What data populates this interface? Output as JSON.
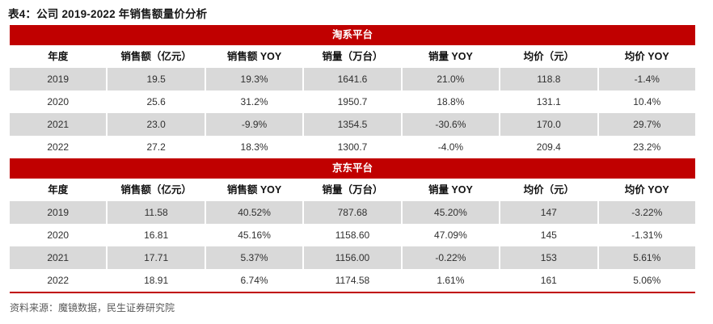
{
  "page": {
    "title": "表4：公司 2019-2022 年销售额量价分析",
    "source": "资料来源：魔镜数据，民生证券研究院"
  },
  "colors": {
    "banner_red": "#c00000",
    "row_stripe": "#d9d9d9"
  },
  "table": {
    "columns": [
      "年度",
      "销售额（亿元）",
      "销售额 YOY",
      "销量（万台）",
      "销量 YOY",
      "均价（元）",
      "均价 YOY"
    ],
    "sections": [
      {
        "platform": "淘系平台",
        "rows": [
          [
            "2019",
            "19.5",
            "19.3%",
            "1641.6",
            "21.0%",
            "118.8",
            "-1.4%"
          ],
          [
            "2020",
            "25.6",
            "31.2%",
            "1950.7",
            "18.8%",
            "131.1",
            "10.4%"
          ],
          [
            "2021",
            "23.0",
            "-9.9%",
            "1354.5",
            "-30.6%",
            "170.0",
            "29.7%"
          ],
          [
            "2022",
            "27.2",
            "18.3%",
            "1300.7",
            "-4.0%",
            "209.4",
            "23.2%"
          ]
        ]
      },
      {
        "platform": "京东平台",
        "rows": [
          [
            "2019",
            "11.58",
            "40.52%",
            "787.68",
            "45.20%",
            "147",
            "-3.22%"
          ],
          [
            "2020",
            "16.81",
            "45.16%",
            "1158.60",
            "47.09%",
            "145",
            "-1.31%"
          ],
          [
            "2021",
            "17.71",
            "5.37%",
            "1156.00",
            "-0.22%",
            "153",
            "5.61%"
          ],
          [
            "2022",
            "18.91",
            "6.74%",
            "1174.58",
            "1.61%",
            "161",
            "5.06%"
          ]
        ]
      }
    ]
  }
}
